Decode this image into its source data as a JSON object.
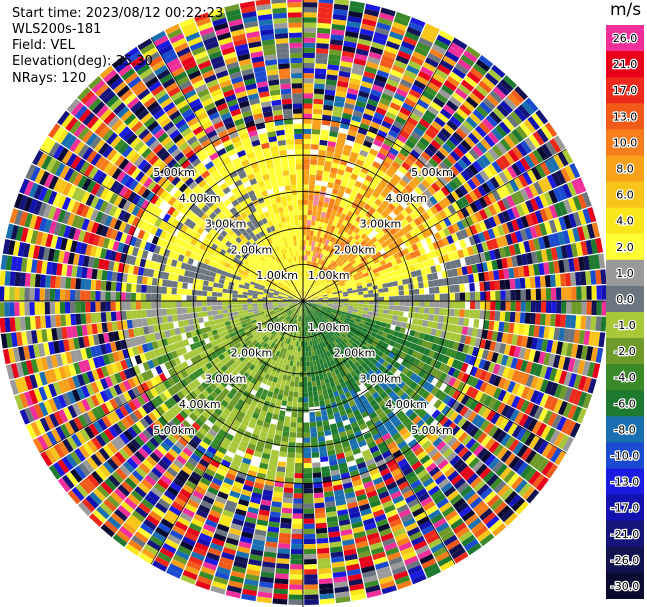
{
  "info": {
    "start_time": "Start time: 2023/08/12 00:22:23",
    "site": "WLS200s-181",
    "field": "Field: VEL",
    "elevation": "Elevation(deg): 35.30",
    "nrays": "NRays: 120"
  },
  "colorbar": {
    "unit": "m/s",
    "levels": [
      {
        "label": "26.0",
        "color": "#f02f9a"
      },
      {
        "label": "21.0",
        "color": "#e8001a"
      },
      {
        "label": "17.0",
        "color": "#f02a1a"
      },
      {
        "label": "13.0",
        "color": "#f25a1a"
      },
      {
        "label": "10.0",
        "color": "#f77e1a"
      },
      {
        "label": "8.0",
        "color": "#f9a21a"
      },
      {
        "label": "6.0",
        "color": "#f9c51a"
      },
      {
        "label": "4.0",
        "color": "#fbe61a"
      },
      {
        "label": "2.0",
        "color": "#ffff33"
      },
      {
        "label": "1.0",
        "color": "#9a9a9a"
      },
      {
        "label": "0.0",
        "color": "#6a7580"
      },
      {
        "label": "-1.0",
        "color": "#a8c83a"
      },
      {
        "label": "-2.0",
        "color": "#6e9a2a"
      },
      {
        "label": "-4.0",
        "color": "#3a8a2a"
      },
      {
        "label": "-6.0",
        "color": "#1e7a2e"
      },
      {
        "label": "-8.0",
        "color": "#1a6fb0"
      },
      {
        "label": "-10.0",
        "color": "#1a4ad0"
      },
      {
        "label": "-13.0",
        "color": "#1a1ae0"
      },
      {
        "label": "-17.0",
        "color": "#1212b0"
      },
      {
        "label": "-21.0",
        "color": "#14147a"
      },
      {
        "label": "-26.0",
        "color": "#121250"
      },
      {
        "label": "-30.0",
        "color": "#0a0a30"
      }
    ]
  },
  "chart_data": {
    "type": "heatmap",
    "title": "",
    "field": "VEL",
    "units": "m/s",
    "range_rings_km": [
      1.0,
      2.0,
      3.0,
      4.0,
      5.0
    ],
    "range_ring_labels": [
      "1.00km",
      "2.00km",
      "3.00km",
      "4.00km",
      "5.00km"
    ],
    "max_range_km": 5.0,
    "n_rays": 120,
    "azimuth_lines_deg": [
      0,
      30,
      60,
      90,
      120,
      150,
      180,
      210,
      240,
      270,
      300,
      330
    ],
    "vmin": -30.0,
    "vmax": 26.0
  }
}
